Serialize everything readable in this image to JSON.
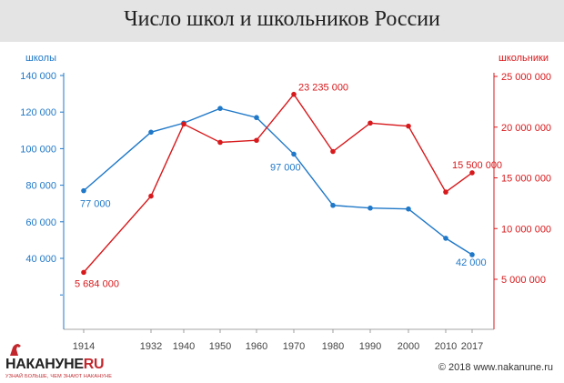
{
  "chart_data": {
    "type": "line",
    "title": "Число школ и школьников России",
    "categories": [
      "1914",
      "1932",
      "1940",
      "1950",
      "1960",
      "1970",
      "1980",
      "1990",
      "2000",
      "2010",
      "2017"
    ],
    "series": [
      {
        "name": "школы",
        "axis": "left",
        "color": "#1f78c8",
        "values": [
          77000,
          109000,
          114000,
          122000,
          117000,
          97000,
          69000,
          67500,
          67000,
          51000,
          42000
        ]
      },
      {
        "name": "школьники",
        "axis": "right",
        "color": "#d7191c",
        "values": [
          5684000,
          13200000,
          20300000,
          18500000,
          18700000,
          23235000,
          17600000,
          20400000,
          20100000,
          13600000,
          15500000
        ]
      }
    ],
    "y_left": {
      "label": "школы",
      "ylim": [
        20000,
        140000
      ],
      "ticks": [
        "140 000",
        "120 000",
        "100 000",
        "80 000",
        "60 000",
        "40 000"
      ]
    },
    "y_right": {
      "label": "школьники",
      "ylim": [
        0,
        25000000
      ],
      "ticks": [
        "25 000 000",
        "20 000 000",
        "15 000 000",
        "10 000 000",
        "5 000 000"
      ]
    },
    "annotations": [
      {
        "series": "школы",
        "index": 0,
        "text": "77 000"
      },
      {
        "series": "школы",
        "index": 5,
        "text": "97 000"
      },
      {
        "series": "школы",
        "index": 10,
        "text": "42 000"
      },
      {
        "series": "школьники",
        "index": 0,
        "text": "5 684 000"
      },
      {
        "series": "школьники",
        "index": 5,
        "text": "23 235 000"
      },
      {
        "series": "школьники",
        "index": 10,
        "text": "15 500 000"
      }
    ],
    "grid": false
  },
  "footer": {
    "logo_main": "НАКАНУНЕ",
    "logo_ru": "RU",
    "logo_tagline": "УЗНАЙ БОЛЬШЕ, ЧЕМ ЗНАЮТ НАКАНУНЕ",
    "copyright": "© 2018 www.nakanune.ru"
  }
}
